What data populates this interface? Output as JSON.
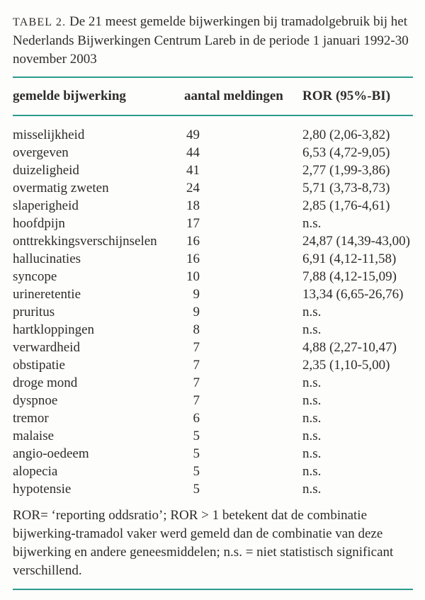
{
  "accent_color": "#2b9c8e",
  "text_color": "#2e2c29",
  "title": {
    "label": "TABEL 2.",
    "text": "De 21 meest gemelde bijwerkingen bij tramadolgebruik bij het Nederlands Bijwerkingen Centrum Lareb in de periode 1 januari 1992-30 november 2003"
  },
  "table": {
    "columns": [
      "gemelde bijwerking",
      "aantal meldingen",
      "ROR (95%-BI)"
    ],
    "rows": [
      {
        "name": "misselijkheid",
        "count": "49",
        "ror": "2,80 (2,06-3,82)"
      },
      {
        "name": "overgeven",
        "count": "44",
        "ror": "6,53 (4,72-9,05)"
      },
      {
        "name": "duizeligheid",
        "count": "41",
        "ror": "2,77 (1,99-3,86)"
      },
      {
        "name": "overmatig zweten",
        "count": "24",
        "ror": "5,71 (3,73-8,73)"
      },
      {
        "name": "slaperigheid",
        "count": "18",
        "ror": "2,85 (1,76-4,61)"
      },
      {
        "name": "hoofdpijn",
        "count": "17",
        "ror": "n.s."
      },
      {
        "name": "onttrekkingsverschijnselen",
        "count": "16",
        "ror": "24,87 (14,39-43,00)"
      },
      {
        "name": "hallucinaties",
        "count": "16",
        "ror": "6,91 (4,12-11,58)"
      },
      {
        "name": "syncope",
        "count": "10",
        "ror": "7,88 (4,12-15,09)"
      },
      {
        "name": "urineretentie",
        "count": "9",
        "ror": "13,34 (6,65-26,76)"
      },
      {
        "name": "pruritus",
        "count": "9",
        "ror": "n.s."
      },
      {
        "name": "hartkloppingen",
        "count": "8",
        "ror": "n.s."
      },
      {
        "name": "verwardheid",
        "count": "7",
        "ror": "4,88 (2,27-10,47)"
      },
      {
        "name": "obstipatie",
        "count": "7",
        "ror": "2,35 (1,10-5,00)"
      },
      {
        "name": "droge mond",
        "count": "7",
        "ror": "n.s."
      },
      {
        "name": "dyspnoe",
        "count": "7",
        "ror": "n.s."
      },
      {
        "name": "tremor",
        "count": "6",
        "ror": "n.s."
      },
      {
        "name": "malaise",
        "count": "5",
        "ror": "n.s."
      },
      {
        "name": "angio-oedeem",
        "count": "5",
        "ror": "n.s."
      },
      {
        "name": "alopecia",
        "count": "5",
        "ror": "n.s."
      },
      {
        "name": "hypotensie",
        "count": "5",
        "ror": "n.s."
      }
    ]
  },
  "footnote": "ROR= ‘reporting oddsratio’; ROR > 1 betekent dat de combinatie bijwerking-tramadol vaker werd gemeld dan de combinatie van deze bijwerking en andere geneesmiddelen; n.s. = niet statistisch significant verschillend."
}
